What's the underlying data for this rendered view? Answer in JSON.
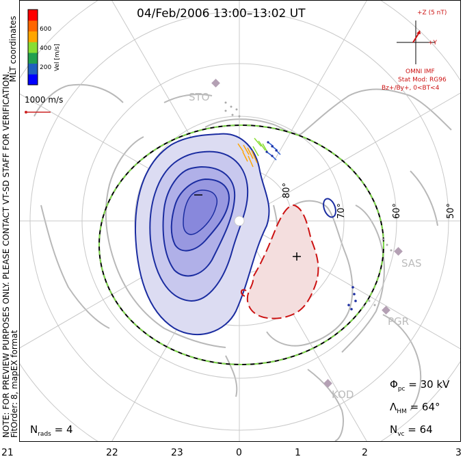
{
  "title": "04/Feb/2006 13:00–13:02 UT",
  "coord_label": "MLT coordinates",
  "note_line1": "NOTE: FOR PREVIEW PURPOSES ONLY. PLEASE CONTACT VT-SD STAFF FOR VERIFICATION.",
  "note_line2": "FitOrder: 8, mapEX format",
  "colorbar": {
    "label": "Vel [m/s]",
    "ticks": [
      "600",
      "400",
      "200"
    ],
    "colors": [
      "#0000ff",
      "#2060c0",
      "#22a050",
      "#88dd33",
      "#ffa500",
      "#ff6600",
      "#ff0000"
    ]
  },
  "velocity_scale": "1000 m/s",
  "imf": {
    "z_label": "+Z (5 nT)",
    "y_label": "+Y",
    "source": "OMNI IMF",
    "model": "Stat Mod: RG96",
    "condition": "Bz+/By+, 0<BT<4"
  },
  "latitude_labels": [
    "80°",
    "70°",
    "60°",
    "50°"
  ],
  "stations": [
    "STO",
    "SAS",
    "PGR",
    "KOD"
  ],
  "phi_pc": {
    "symbol": "Φ",
    "sub": "pc",
    "value": "= 30 kV"
  },
  "lambda_hm": {
    "symbol": "Λ",
    "sub": "HM",
    "value": "= 64°"
  },
  "n_vc": {
    "symbol": "N",
    "sub": "vc",
    "value": "= 64"
  },
  "n_rads": {
    "symbol": "N",
    "sub": "rads",
    "value": "= 4"
  },
  "cell_markers": {
    "negative": "−",
    "positive": "+"
  },
  "mlt_axis": [
    "21",
    "22",
    "23",
    "0",
    "1",
    "2",
    "3"
  ]
}
